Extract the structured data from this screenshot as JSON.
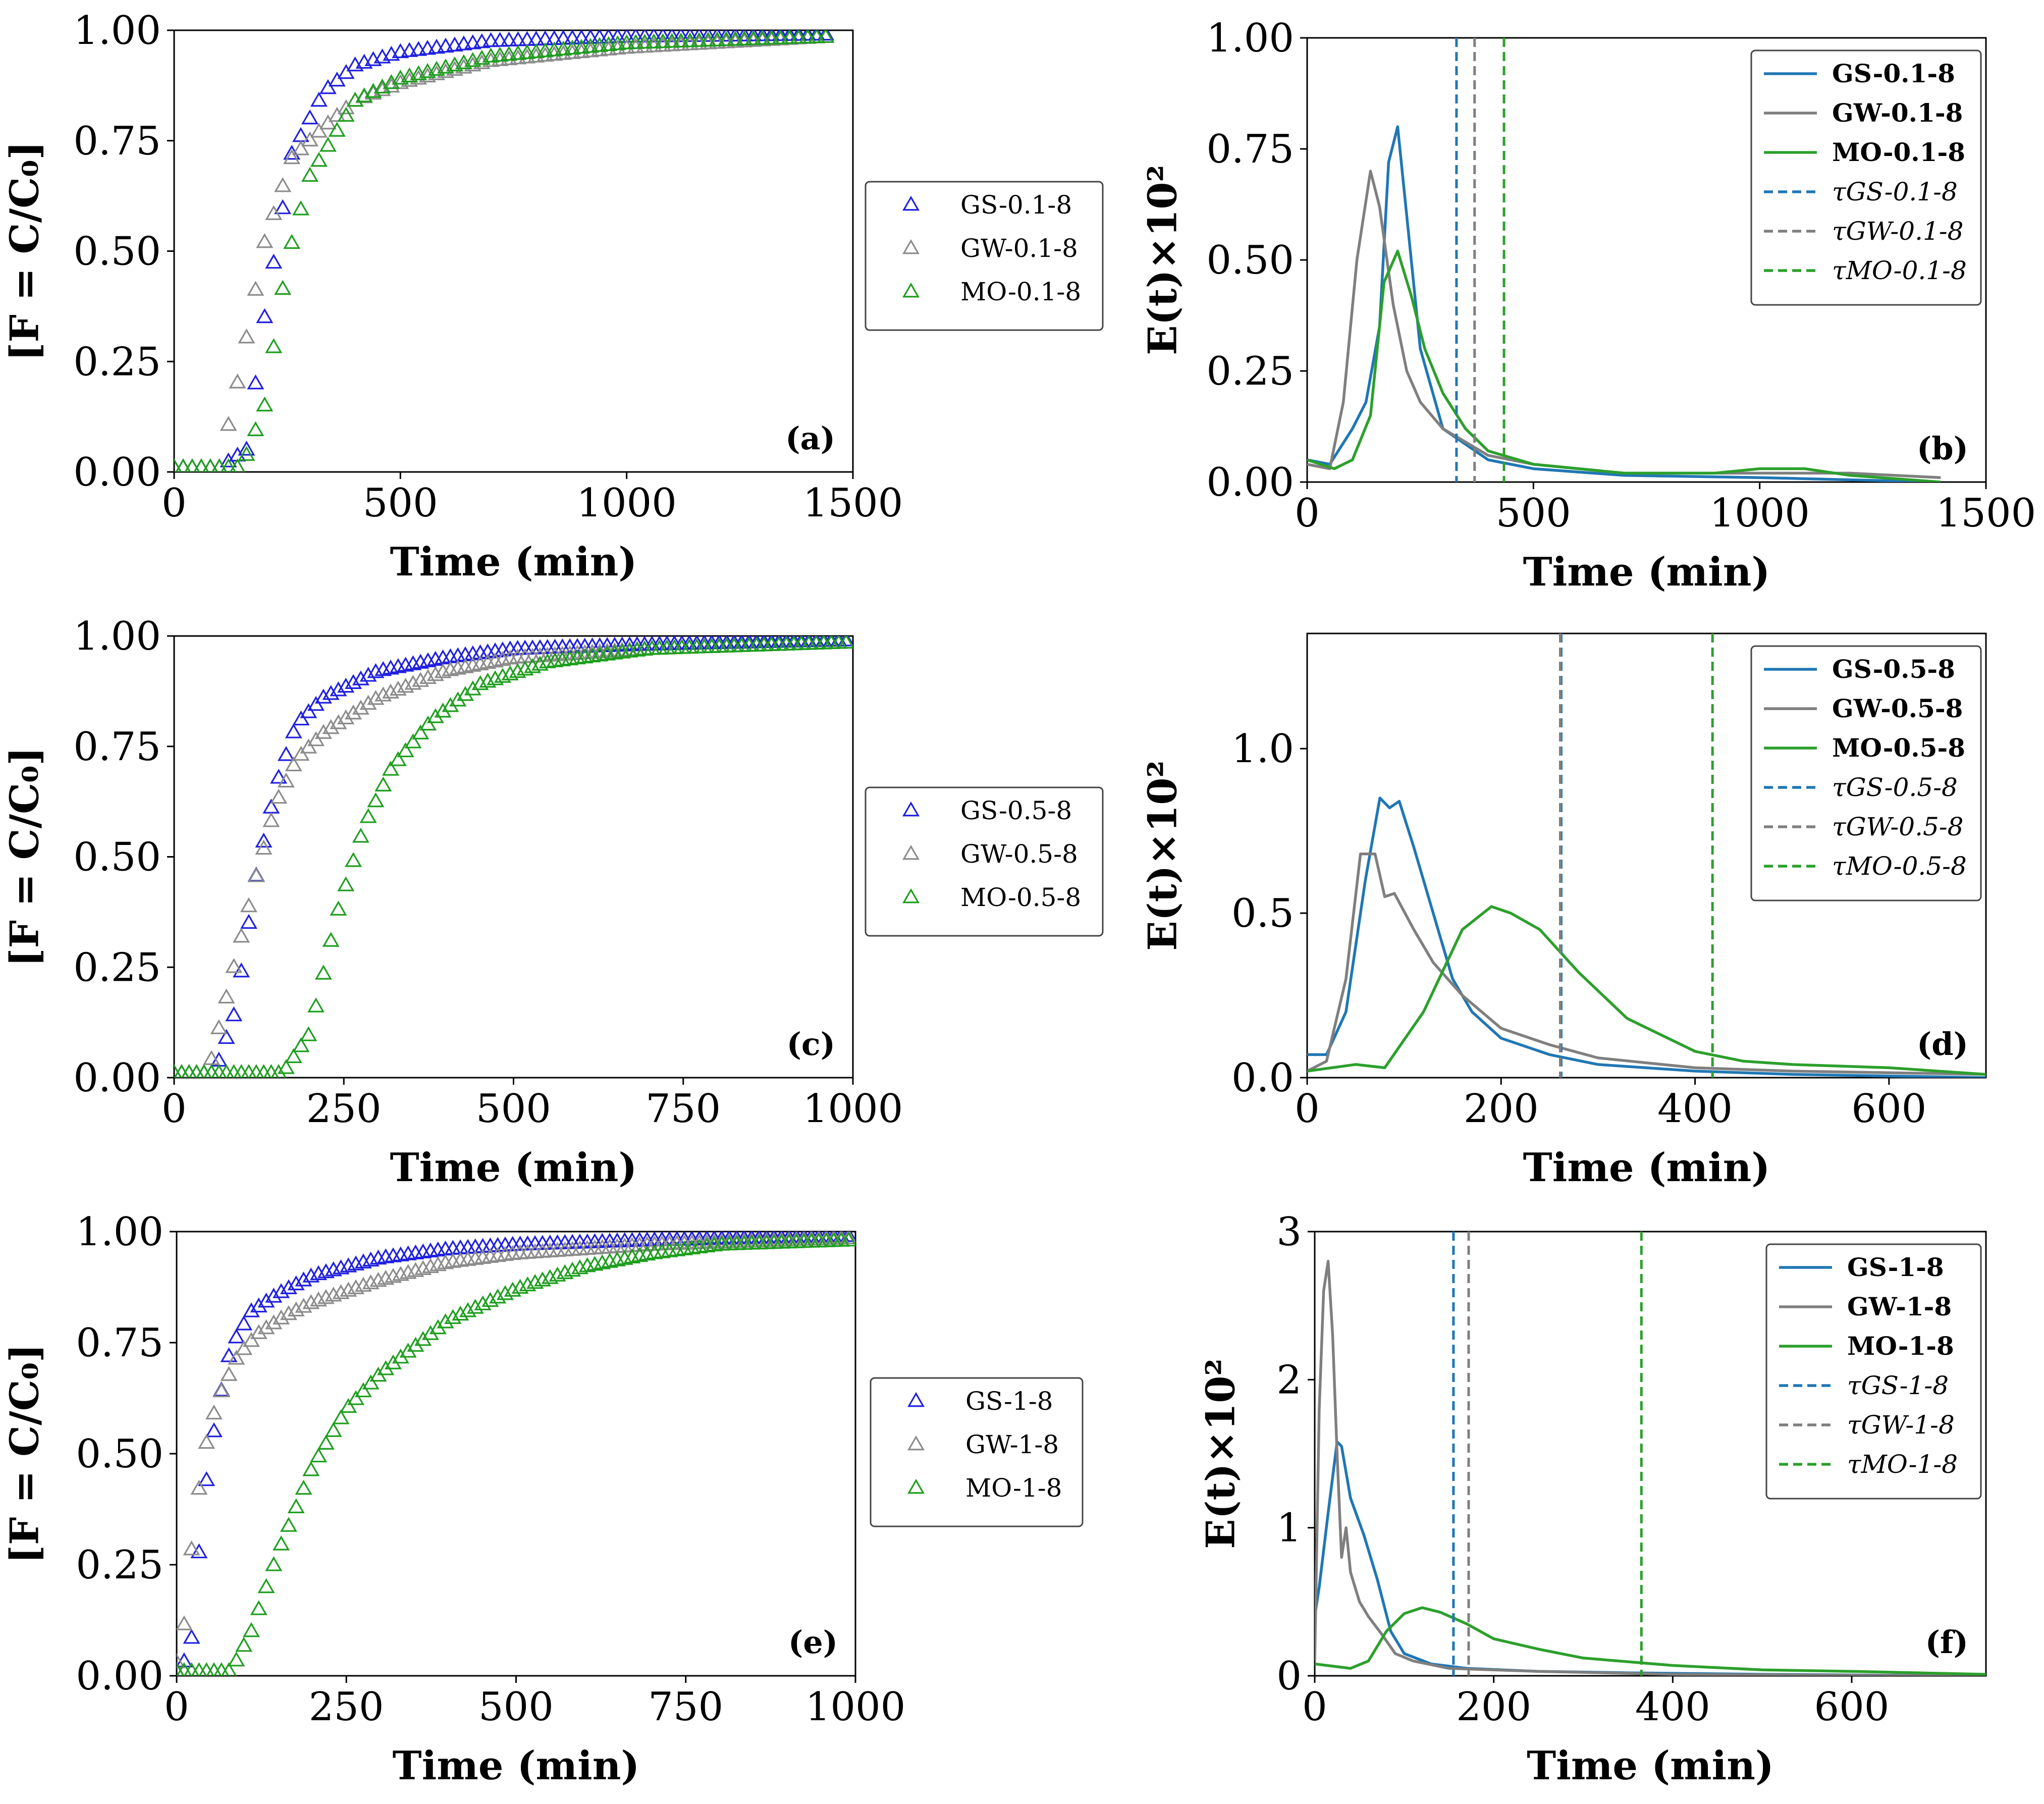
{
  "colors": {
    "gs_marker": "#2020e0",
    "gw_marker": "#8c8c8c",
    "mo_marker": "#1f9e1f",
    "gs_line": "#1f77b4",
    "gw_line": "#7f7f7f",
    "mo_line": "#2ca02c"
  },
  "chart_data": [
    {
      "id": "a",
      "type": "scatter",
      "panel_label": "(a)",
      "xlabel": "Time (min)",
      "ylabel": "[F = C/C₀]",
      "xlim": [
        0,
        1500
      ],
      "ylim": [
        0,
        1
      ],
      "xticks": [
        0,
        500,
        1000,
        1500
      ],
      "xtick_labels": [
        "0",
        "500",
        "1000",
        "1500"
      ],
      "yticks": [
        0,
        0.25,
        0.5,
        0.75,
        1
      ],
      "ytick_labels": [
        "0.00",
        "0.25",
        "0.50",
        "0.75",
        "1.00"
      ],
      "legend_position": "center-right-outside",
      "series": [
        {
          "name": "GS-0.1-8",
          "kind": "triangle",
          "color_key": "gs_marker",
          "t0": 160,
          "spread": 130,
          "x_end": 1450,
          "step": 20,
          "x": [
            0,
            100,
            160,
            200,
            260,
            330,
            400,
            500,
            700,
            1000,
            1450
          ],
          "y": [
            0.01,
            0.01,
            0.05,
            0.35,
            0.72,
            0.86,
            0.92,
            0.95,
            0.975,
            0.985,
            0.99
          ]
        },
        {
          "name": "GW-0.1-8",
          "kind": "triangle",
          "color_key": "gw_marker",
          "t0": 100,
          "spread": 190,
          "x_end": 1450,
          "step": 20,
          "x": [
            0,
            100,
            150,
            200,
            260,
            330,
            400,
            500,
            700,
            1000,
            1450
          ],
          "y": [
            0.01,
            0.01,
            0.25,
            0.52,
            0.71,
            0.78,
            0.84,
            0.88,
            0.93,
            0.96,
            0.985
          ]
        },
        {
          "name": "MO-0.1-8",
          "kind": "triangle",
          "color_key": "mo_marker",
          "t0": 165,
          "spread": 190,
          "x_end": 1450,
          "step": 20,
          "x": [
            0,
            150,
            200,
            250,
            300,
            400,
            500,
            700,
            1000,
            1450
          ],
          "y": [
            0.01,
            0.01,
            0.15,
            0.48,
            0.67,
            0.84,
            0.89,
            0.94,
            0.97,
            0.985
          ]
        }
      ]
    },
    {
      "id": "b",
      "type": "line",
      "panel_label": "(b)",
      "xlabel": "Time (min)",
      "ylabel": "E(t)×10²",
      "xlim": [
        0,
        1500
      ],
      "ylim": [
        0,
        1
      ],
      "xticks": [
        0,
        500,
        1000,
        1500
      ],
      "xtick_labels": [
        "0",
        "500",
        "1000",
        "1500"
      ],
      "yticks": [
        0,
        0.25,
        0.5,
        0.75,
        1
      ],
      "ytick_labels": [
        "0.00",
        "0.25",
        "0.50",
        "0.75",
        "1.00"
      ],
      "legend_position": "upper-right",
      "series": [
        {
          "name": "GS-0.1-8",
          "kind": "line",
          "color_key": "gs_line",
          "x": [
            0,
            50,
            100,
            130,
            160,
            180,
            200,
            220,
            250,
            300,
            400,
            500,
            700,
            1000,
            1200,
            1400
          ],
          "y": [
            0.05,
            0.04,
            0.12,
            0.18,
            0.35,
            0.72,
            0.8,
            0.6,
            0.3,
            0.12,
            0.05,
            0.03,
            0.015,
            0.01,
            0.005,
            0
          ]
        },
        {
          "name": "GW-0.1-8",
          "kind": "line",
          "color_key": "gw_line",
          "x": [
            0,
            50,
            80,
            110,
            140,
            160,
            190,
            220,
            250,
            300,
            400,
            500,
            700,
            1000,
            1200,
            1400
          ],
          "y": [
            0.04,
            0.03,
            0.18,
            0.5,
            0.7,
            0.62,
            0.4,
            0.25,
            0.18,
            0.12,
            0.06,
            0.04,
            0.02,
            0.02,
            0.02,
            0.01
          ]
        },
        {
          "name": "MO-0.1-8",
          "kind": "line",
          "color_key": "mo_line",
          "x": [
            0,
            60,
            100,
            140,
            170,
            200,
            230,
            260,
            300,
            350,
            400,
            500,
            700,
            900,
            1000,
            1100,
            1200,
            1400
          ],
          "y": [
            0.05,
            0.03,
            0.05,
            0.15,
            0.45,
            0.52,
            0.42,
            0.3,
            0.2,
            0.12,
            0.07,
            0.04,
            0.02,
            0.02,
            0.03,
            0.03,
            0.015,
            0
          ]
        },
        {
          "name": "τGS-0.1-8",
          "kind": "vline",
          "color_key": "gs_line",
          "x_value": 330
        },
        {
          "name": "τGW-0.1-8",
          "kind": "vline",
          "color_key": "gw_line",
          "x_value": 370
        },
        {
          "name": "τMO-0.1-8",
          "kind": "vline",
          "color_key": "mo_line",
          "x_value": 435
        }
      ]
    },
    {
      "id": "c",
      "type": "scatter",
      "panel_label": "(c)",
      "xlabel": "Time (min)",
      "ylabel": "[F = C/C₀]",
      "xlim": [
        0,
        1000
      ],
      "ylim": [
        0,
        1
      ],
      "xticks": [
        0,
        250,
        500,
        750,
        1000
      ],
      "xtick_labels": [
        "0",
        "250",
        "500",
        "750",
        "1000"
      ],
      "yticks": [
        0,
        0.25,
        0.5,
        0.75,
        1
      ],
      "ytick_labels": [
        "0.00",
        "0.25",
        "0.50",
        "0.75",
        "1.00"
      ],
      "legend_position": "center-right-outside",
      "series": [
        {
          "name": "GS-0.5-8",
          "kind": "triangle",
          "color_key": "gs_marker",
          "t0": 65,
          "spread": 95,
          "x_end": 1000,
          "step": 11,
          "x": [
            0,
            60,
            90,
            120,
            150,
            180,
            220,
            300,
            400,
            500,
            700,
            1000
          ],
          "y": [
            0.01,
            0.01,
            0.15,
            0.45,
            0.66,
            0.8,
            0.86,
            0.92,
            0.95,
            0.97,
            0.98,
            0.99
          ]
        },
        {
          "name": "GW-0.5-8",
          "kind": "triangle",
          "color_key": "gw_marker",
          "t0": 52,
          "spread": 120,
          "x_end": 1000,
          "step": 11,
          "x": [
            0,
            50,
            80,
            120,
            150,
            180,
            220,
            300,
            400,
            500,
            700,
            1000
          ],
          "y": [
            0.01,
            0.01,
            0.2,
            0.45,
            0.62,
            0.72,
            0.78,
            0.86,
            0.92,
            0.95,
            0.97,
            0.985
          ]
        },
        {
          "name": "MO-0.5-8",
          "kind": "triangle",
          "color_key": "mo_marker",
          "t0": 168,
          "spread": 130,
          "x_end": 1000,
          "step": 11,
          "x": [
            0,
            160,
            200,
            240,
            280,
            320,
            380,
            450,
            550,
            700,
            1000
          ],
          "y": [
            0.01,
            0.01,
            0.1,
            0.37,
            0.57,
            0.7,
            0.81,
            0.89,
            0.94,
            0.97,
            0.985
          ]
        }
      ]
    },
    {
      "id": "d",
      "type": "line",
      "panel_label": "(d)",
      "xlabel": "Time (min)",
      "ylabel": "E(t)×10²",
      "xlim": [
        0,
        700
      ],
      "ylim": [
        0,
        1.35
      ],
      "xticks": [
        0,
        200,
        400,
        600
      ],
      "xtick_labels": [
        "0",
        "200",
        "400",
        "600"
      ],
      "yticks": [
        0,
        0.5,
        1
      ],
      "ytick_labels": [
        "0.0",
        "0.5",
        "1.0"
      ],
      "legend_position": "upper-right",
      "series": [
        {
          "name": "GS-0.5-8",
          "kind": "line",
          "color_key": "gs_line",
          "x": [
            0,
            20,
            40,
            60,
            75,
            85,
            95,
            110,
            130,
            150,
            170,
            200,
            250,
            300,
            400,
            500,
            700
          ],
          "y": [
            0.07,
            0.07,
            0.2,
            0.6,
            0.85,
            0.82,
            0.84,
            0.7,
            0.5,
            0.3,
            0.2,
            0.12,
            0.07,
            0.04,
            0.02,
            0.01,
            0
          ]
        },
        {
          "name": "GW-0.5-8",
          "kind": "line",
          "color_key": "gw_line",
          "x": [
            0,
            20,
            40,
            55,
            70,
            80,
            90,
            110,
            130,
            160,
            200,
            250,
            300,
            400,
            500,
            700
          ],
          "y": [
            0.02,
            0.05,
            0.3,
            0.68,
            0.68,
            0.55,
            0.56,
            0.45,
            0.35,
            0.25,
            0.15,
            0.1,
            0.06,
            0.03,
            0.02,
            0.01
          ]
        },
        {
          "name": "MO-0.5-8",
          "kind": "line",
          "color_key": "mo_line",
          "x": [
            0,
            50,
            80,
            120,
            160,
            190,
            210,
            240,
            280,
            330,
            400,
            450,
            500,
            600,
            700
          ],
          "y": [
            0.02,
            0.04,
            0.03,
            0.2,
            0.45,
            0.52,
            0.5,
            0.45,
            0.32,
            0.18,
            0.08,
            0.05,
            0.04,
            0.03,
            0.01
          ]
        },
        {
          "name": "τGS-0.5-8",
          "kind": "vline",
          "color_key": "gs_line",
          "x_value": 262
        },
        {
          "name": "τGW-0.5-8",
          "kind": "vline",
          "color_key": "gw_line",
          "x_value": 261
        },
        {
          "name": "τMO-0.5-8",
          "kind": "vline",
          "color_key": "mo_line",
          "x_value": 418
        }
      ]
    },
    {
      "id": "e",
      "type": "scatter",
      "panel_label": "(e)",
      "xlabel": "Time (min)",
      "ylabel": "[F = C/C₀]",
      "xlim": [
        0,
        1000
      ],
      "ylim": [
        0,
        1
      ],
      "xticks": [
        0,
        250,
        500,
        750,
        1000
      ],
      "xtick_labels": [
        "0",
        "250",
        "500",
        "750",
        "1000"
      ],
      "yticks": [
        0,
        0.25,
        0.5,
        0.75,
        1
      ],
      "ytick_labels": [
        "0.00",
        "0.25",
        "0.50",
        "0.75",
        "1.00"
      ],
      "legend_position": "center-right-outside",
      "series": [
        {
          "name": "GS-1-8",
          "kind": "triangle",
          "color_key": "gs_marker",
          "t0": 15,
          "spread": 80,
          "x_end": 1000,
          "step": 11,
          "x": [
            0,
            20,
            40,
            60,
            80,
            110,
            150,
            200,
            300,
            400,
            500,
            700,
            1000
          ],
          "y": [
            0.01,
            0.05,
            0.4,
            0.6,
            0.74,
            0.82,
            0.86,
            0.9,
            0.94,
            0.96,
            0.97,
            0.98,
            0.99
          ]
        },
        {
          "name": "GW-1-8",
          "kind": "triangle",
          "color_key": "gw_marker",
          "t0": 0,
          "spread": 95,
          "x_end": 1000,
          "step": 11,
          "x": [
            0,
            10,
            25,
            40,
            60,
            90,
            120,
            160,
            200,
            300,
            400,
            500,
            700,
            1000
          ],
          "y": [
            0.03,
            0.1,
            0.33,
            0.5,
            0.62,
            0.72,
            0.77,
            0.81,
            0.84,
            0.89,
            0.93,
            0.95,
            0.97,
            0.985
          ]
        },
        {
          "name": "MO-1-8",
          "kind": "triangle",
          "color_key": "mo_marker",
          "t0": 85,
          "spread": 200,
          "x_end": 1000,
          "step": 11,
          "x": [
            0,
            80,
            110,
            150,
            200,
            250,
            300,
            400,
            500,
            600,
            700,
            800,
            1000
          ],
          "y": [
            0.01,
            0.01,
            0.1,
            0.28,
            0.47,
            0.6,
            0.68,
            0.8,
            0.87,
            0.92,
            0.95,
            0.97,
            0.98
          ]
        }
      ]
    },
    {
      "id": "f",
      "type": "line",
      "panel_label": "(f)",
      "xlabel": "Time (min)",
      "ylabel": "E(t)×10²",
      "xlim": [
        0,
        750
      ],
      "ylim": [
        0,
        3
      ],
      "xticks": [
        0,
        200,
        400,
        600
      ],
      "xtick_labels": [
        "0",
        "200",
        "400",
        "600"
      ],
      "yticks": [
        0,
        1,
        2,
        3
      ],
      "ytick_labels": [
        "0",
        "1",
        "2",
        "3"
      ],
      "legend_position": "upper-right",
      "series": [
        {
          "name": "GS-1-8",
          "kind": "line",
          "color_key": "gs_line",
          "x": [
            0,
            5,
            15,
            25,
            30,
            40,
            55,
            70,
            85,
            100,
            130,
            170,
            250,
            350,
            500,
            750
          ],
          "y": [
            0.4,
            0.6,
            1.1,
            1.58,
            1.55,
            1.2,
            0.95,
            0.65,
            0.3,
            0.15,
            0.08,
            0.05,
            0.03,
            0.02,
            0.01,
            0
          ]
        },
        {
          "name": "GW-1-8",
          "kind": "line",
          "color_key": "gw_line",
          "x": [
            0,
            5,
            10,
            15,
            20,
            25,
            30,
            35,
            40,
            50,
            60,
            75,
            90,
            110,
            150,
            250,
            400,
            750
          ],
          "y": [
            0.1,
            1.8,
            2.6,
            2.8,
            2.3,
            1.5,
            0.8,
            1.0,
            0.7,
            0.5,
            0.4,
            0.28,
            0.15,
            0.1,
            0.05,
            0.03,
            0.01,
            0
          ]
        },
        {
          "name": "MO-1-8",
          "kind": "line",
          "color_key": "mo_line",
          "x": [
            0,
            40,
            60,
            80,
            100,
            120,
            140,
            170,
            200,
            250,
            300,
            400,
            500,
            600,
            750
          ],
          "y": [
            0.08,
            0.05,
            0.1,
            0.3,
            0.42,
            0.46,
            0.43,
            0.35,
            0.25,
            0.18,
            0.12,
            0.07,
            0.04,
            0.03,
            0.01
          ]
        },
        {
          "name": "τGS-1-8",
          "kind": "vline",
          "color_key": "gs_line",
          "x_value": 155
        },
        {
          "name": "τGW-1-8",
          "kind": "vline",
          "color_key": "gw_line",
          "x_value": 172
        },
        {
          "name": "τMO-1-8",
          "kind": "vline",
          "color_key": "mo_line",
          "x_value": 365
        }
      ]
    }
  ]
}
